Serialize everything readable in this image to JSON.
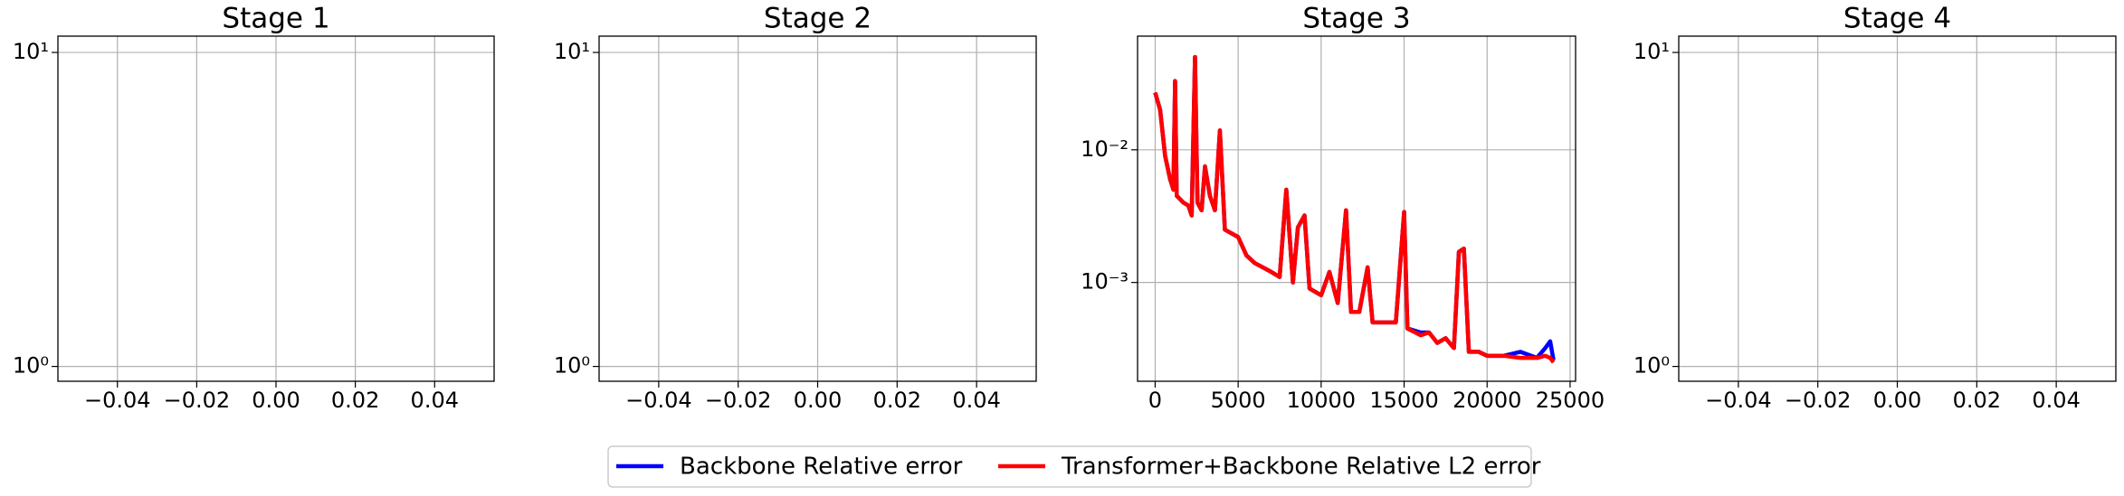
{
  "chart_data": [
    {
      "type": "line",
      "title": "Stage 1",
      "log_y": true,
      "grid": true,
      "xlim": [
        -0.055,
        0.055
      ],
      "ylim": [
        0.897,
        11.27
      ],
      "xticks": [
        {
          "value": -0.04,
          "label": "−0.04"
        },
        {
          "value": -0.02,
          "label": "−0.02"
        },
        {
          "value": 0,
          "label": "0.00"
        },
        {
          "value": 0.02,
          "label": "0.02"
        },
        {
          "value": 0.04,
          "label": "0.04"
        }
      ],
      "yticks": [
        {
          "value": 1,
          "label": "10⁰"
        },
        {
          "value": 10,
          "label": "10¹"
        }
      ]
    },
    {
      "type": "line",
      "title": "Stage 2",
      "log_y": true,
      "grid": true,
      "xlim": [
        -0.055,
        0.055
      ],
      "ylim": [
        0.897,
        11.27
      ],
      "xticks": [
        {
          "value": -0.04,
          "label": "−0.04"
        },
        {
          "value": -0.02,
          "label": "−0.02"
        },
        {
          "value": 0,
          "label": "0.00"
        },
        {
          "value": 0.02,
          "label": "0.02"
        },
        {
          "value": 0.04,
          "label": "0.04"
        }
      ],
      "yticks": [
        {
          "value": 1,
          "label": "10⁰"
        },
        {
          "value": 10,
          "label": "10¹"
        }
      ]
    },
    {
      "type": "line",
      "title": "Stage 3",
      "log_y": true,
      "grid": true,
      "legend": "below",
      "xlim": [
        -1060,
        25330
      ],
      "ylim": [
        0.00018,
        0.0719
      ],
      "xticks": [
        0,
        5000,
        10000,
        15000,
        20000,
        25000
      ],
      "yticks": [
        {
          "value": 0.001,
          "label": "10⁻³"
        },
        {
          "value": 0.01,
          "label": "10⁻²"
        }
      ],
      "x": [
        0,
        300,
        600,
        900,
        1100,
        1200,
        1300,
        1700,
        2000,
        2200,
        2400,
        2550,
        2800,
        3000,
        3300,
        3600,
        3900,
        4200,
        5000,
        5500,
        6000,
        7000,
        7500,
        7900,
        8300,
        8600,
        9000,
        9300,
        10000,
        10500,
        11000,
        11500,
        11800,
        12300,
        12800,
        13100,
        14000,
        14500,
        15000,
        15200,
        16000,
        16500,
        17000,
        17500,
        18000,
        18300,
        18600,
        18900,
        19500,
        20000,
        20500,
        21000,
        22000,
        23000,
        23500,
        23800,
        24000
      ],
      "series": [
        {
          "name": "Backbone Relative error",
          "color": "#0000ff",
          "values": [
            0.027,
            0.02,
            0.009,
            0.006,
            0.005,
            0.033,
            0.0045,
            0.004,
            0.0038,
            0.0032,
            0.05,
            0.004,
            0.0035,
            0.0075,
            0.0045,
            0.0035,
            0.014,
            0.0025,
            0.0022,
            0.0016,
            0.0014,
            0.0012,
            0.0011,
            0.005,
            0.001,
            0.0026,
            0.0032,
            0.0009,
            0.0008,
            0.0012,
            0.0007,
            0.0035,
            0.0006,
            0.0006,
            0.0013,
            0.0005,
            0.0005,
            0.0005,
            0.0034,
            0.00045,
            0.00042,
            0.00042,
            0.00035,
            0.00038,
            0.00032,
            0.0017,
            0.0018,
            0.0003,
            0.0003,
            0.00028,
            0.00028,
            0.00028,
            0.0003,
            0.00027,
            0.00032,
            0.00036,
            0.00026
          ]
        },
        {
          "name": "Transformer+Backbone Relative L2 error",
          "color": "#ff0000",
          "values": [
            0.027,
            0.02,
            0.009,
            0.006,
            0.005,
            0.033,
            0.0045,
            0.004,
            0.0038,
            0.0032,
            0.05,
            0.004,
            0.0035,
            0.0075,
            0.0045,
            0.0035,
            0.014,
            0.0025,
            0.0022,
            0.0016,
            0.0014,
            0.0012,
            0.0011,
            0.005,
            0.001,
            0.0026,
            0.0032,
            0.0009,
            0.0008,
            0.0012,
            0.0007,
            0.0035,
            0.0006,
            0.0006,
            0.0013,
            0.0005,
            0.0005,
            0.0005,
            0.0034,
            0.00045,
            0.0004,
            0.00042,
            0.00035,
            0.00038,
            0.00032,
            0.0017,
            0.0018,
            0.0003,
            0.0003,
            0.00028,
            0.00028,
            0.00028,
            0.00027,
            0.00027,
            0.00028,
            0.00027,
            0.00025
          ]
        }
      ]
    },
    {
      "type": "line",
      "title": "Stage 4",
      "log_y": true,
      "grid": true,
      "xlim": [
        -0.055,
        0.055
      ],
      "ylim": [
        0.897,
        11.27
      ],
      "xticks": [
        {
          "value": -0.04,
          "label": "−0.04"
        },
        {
          "value": -0.02,
          "label": "−0.02"
        },
        {
          "value": 0,
          "label": "0.00"
        },
        {
          "value": 0.02,
          "label": "0.02"
        },
        {
          "value": 0.04,
          "label": "0.04"
        }
      ],
      "yticks": [
        {
          "value": 1,
          "label": "10⁰"
        },
        {
          "value": 10,
          "label": "10¹"
        }
      ]
    }
  ]
}
